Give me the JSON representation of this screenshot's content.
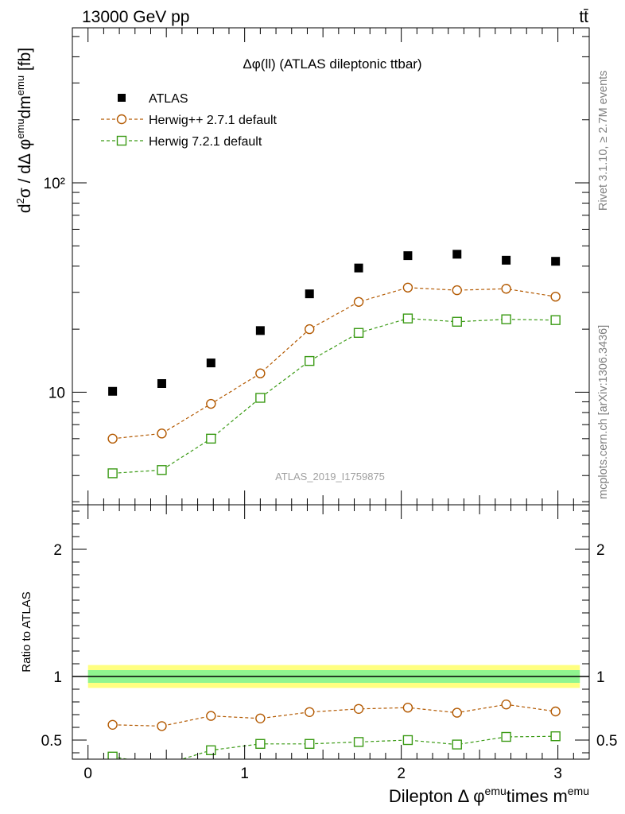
{
  "header": {
    "left": "13000 GeV pp",
    "right": "tt̄"
  },
  "side_labels": {
    "rivet": "Rivet 3.1.10, ≥ 2.7M events",
    "mcplots": "mcplots.cern.ch [arXiv:1306.3436]"
  },
  "plot_title": "Δφ(ll) (ATLAS dileptonic ttbar)",
  "watermark": "ATLAS_2019_I1759875",
  "legend": {
    "atlas": "ATLAS",
    "herwigpp": "Herwig++ 2.7.1 default",
    "herwig7": "Herwig 7.2.1 default"
  },
  "axes": {
    "ylabel_main": "d²σ / dΔφ^emu dm^emu [fb]",
    "ylabel_ratio": "Ratio to ATLAS",
    "xlabel": "Dilepton Δ φ^emu times m^emu"
  },
  "colors": {
    "atlas": "#000000",
    "herwigpp": "#b35900",
    "herwig7": "#3a9a14",
    "band_inner": "#8ff58f",
    "band_outer": "#ffff80"
  },
  "chart_data": [
    {
      "type": "scatter",
      "panel": "main",
      "yscale": "log",
      "xlim": [
        -0.1,
        3.2
      ],
      "ylim": [
        2.9,
        550
      ],
      "y_tick_labels": [
        "10",
        "10²"
      ],
      "x": [
        0.157,
        0.471,
        0.785,
        1.1,
        1.414,
        1.728,
        2.042,
        2.356,
        2.67,
        2.985
      ],
      "series": [
        {
          "name": "ATLAS",
          "marker": "filled-square",
          "values": [
            10.1,
            11.0,
            13.8,
            19.7,
            29.5,
            39.2,
            44.9,
            45.6,
            42.7,
            42.2
          ]
        },
        {
          "name": "Herwig++ 2.7.1 default",
          "marker": "open-circle",
          "line": "dashed",
          "values": [
            6.0,
            6.35,
            8.8,
            12.3,
            20.0,
            27.0,
            31.6,
            30.7,
            31.2,
            28.6
          ]
        },
        {
          "name": "Herwig 7.2.1 default",
          "marker": "open-square",
          "line": "dashed",
          "values": [
            4.1,
            4.25,
            6.0,
            9.4,
            14.1,
            19.2,
            22.5,
            21.7,
            22.3,
            22.1
          ]
        }
      ]
    },
    {
      "type": "scatter",
      "panel": "ratio",
      "xlim": [
        -0.1,
        3.2
      ],
      "ylim": [
        0.35,
        2.35
      ],
      "y_ticks": [
        0.5,
        1,
        2
      ],
      "x_ticks": [
        0,
        1,
        2,
        3
      ],
      "reference_line": 1,
      "band_inner": 0.05,
      "band_outer": 0.09,
      "series": [
        {
          "name": "Herwig++ 2.7.1 default",
          "values": [
            0.62,
            0.61,
            0.69,
            0.67,
            0.72,
            0.745,
            0.755,
            0.715,
            0.78,
            0.725
          ],
          "errors": [
            0.025,
            0.025,
            0.02,
            0.015,
            0.012,
            0.01,
            0.01,
            0.01,
            0.01,
            0.01
          ]
        },
        {
          "name": "Herwig 7.2.1 default",
          "values": [
            0.37,
            0.3,
            0.42,
            0.47,
            0.47,
            0.485,
            0.5,
            0.465,
            0.525,
            0.53
          ],
          "errors": [
            0.02,
            0.02,
            0.02,
            0.015,
            0.012,
            0.01,
            0.01,
            0.01,
            0.01,
            0.01
          ]
        }
      ]
    }
  ]
}
